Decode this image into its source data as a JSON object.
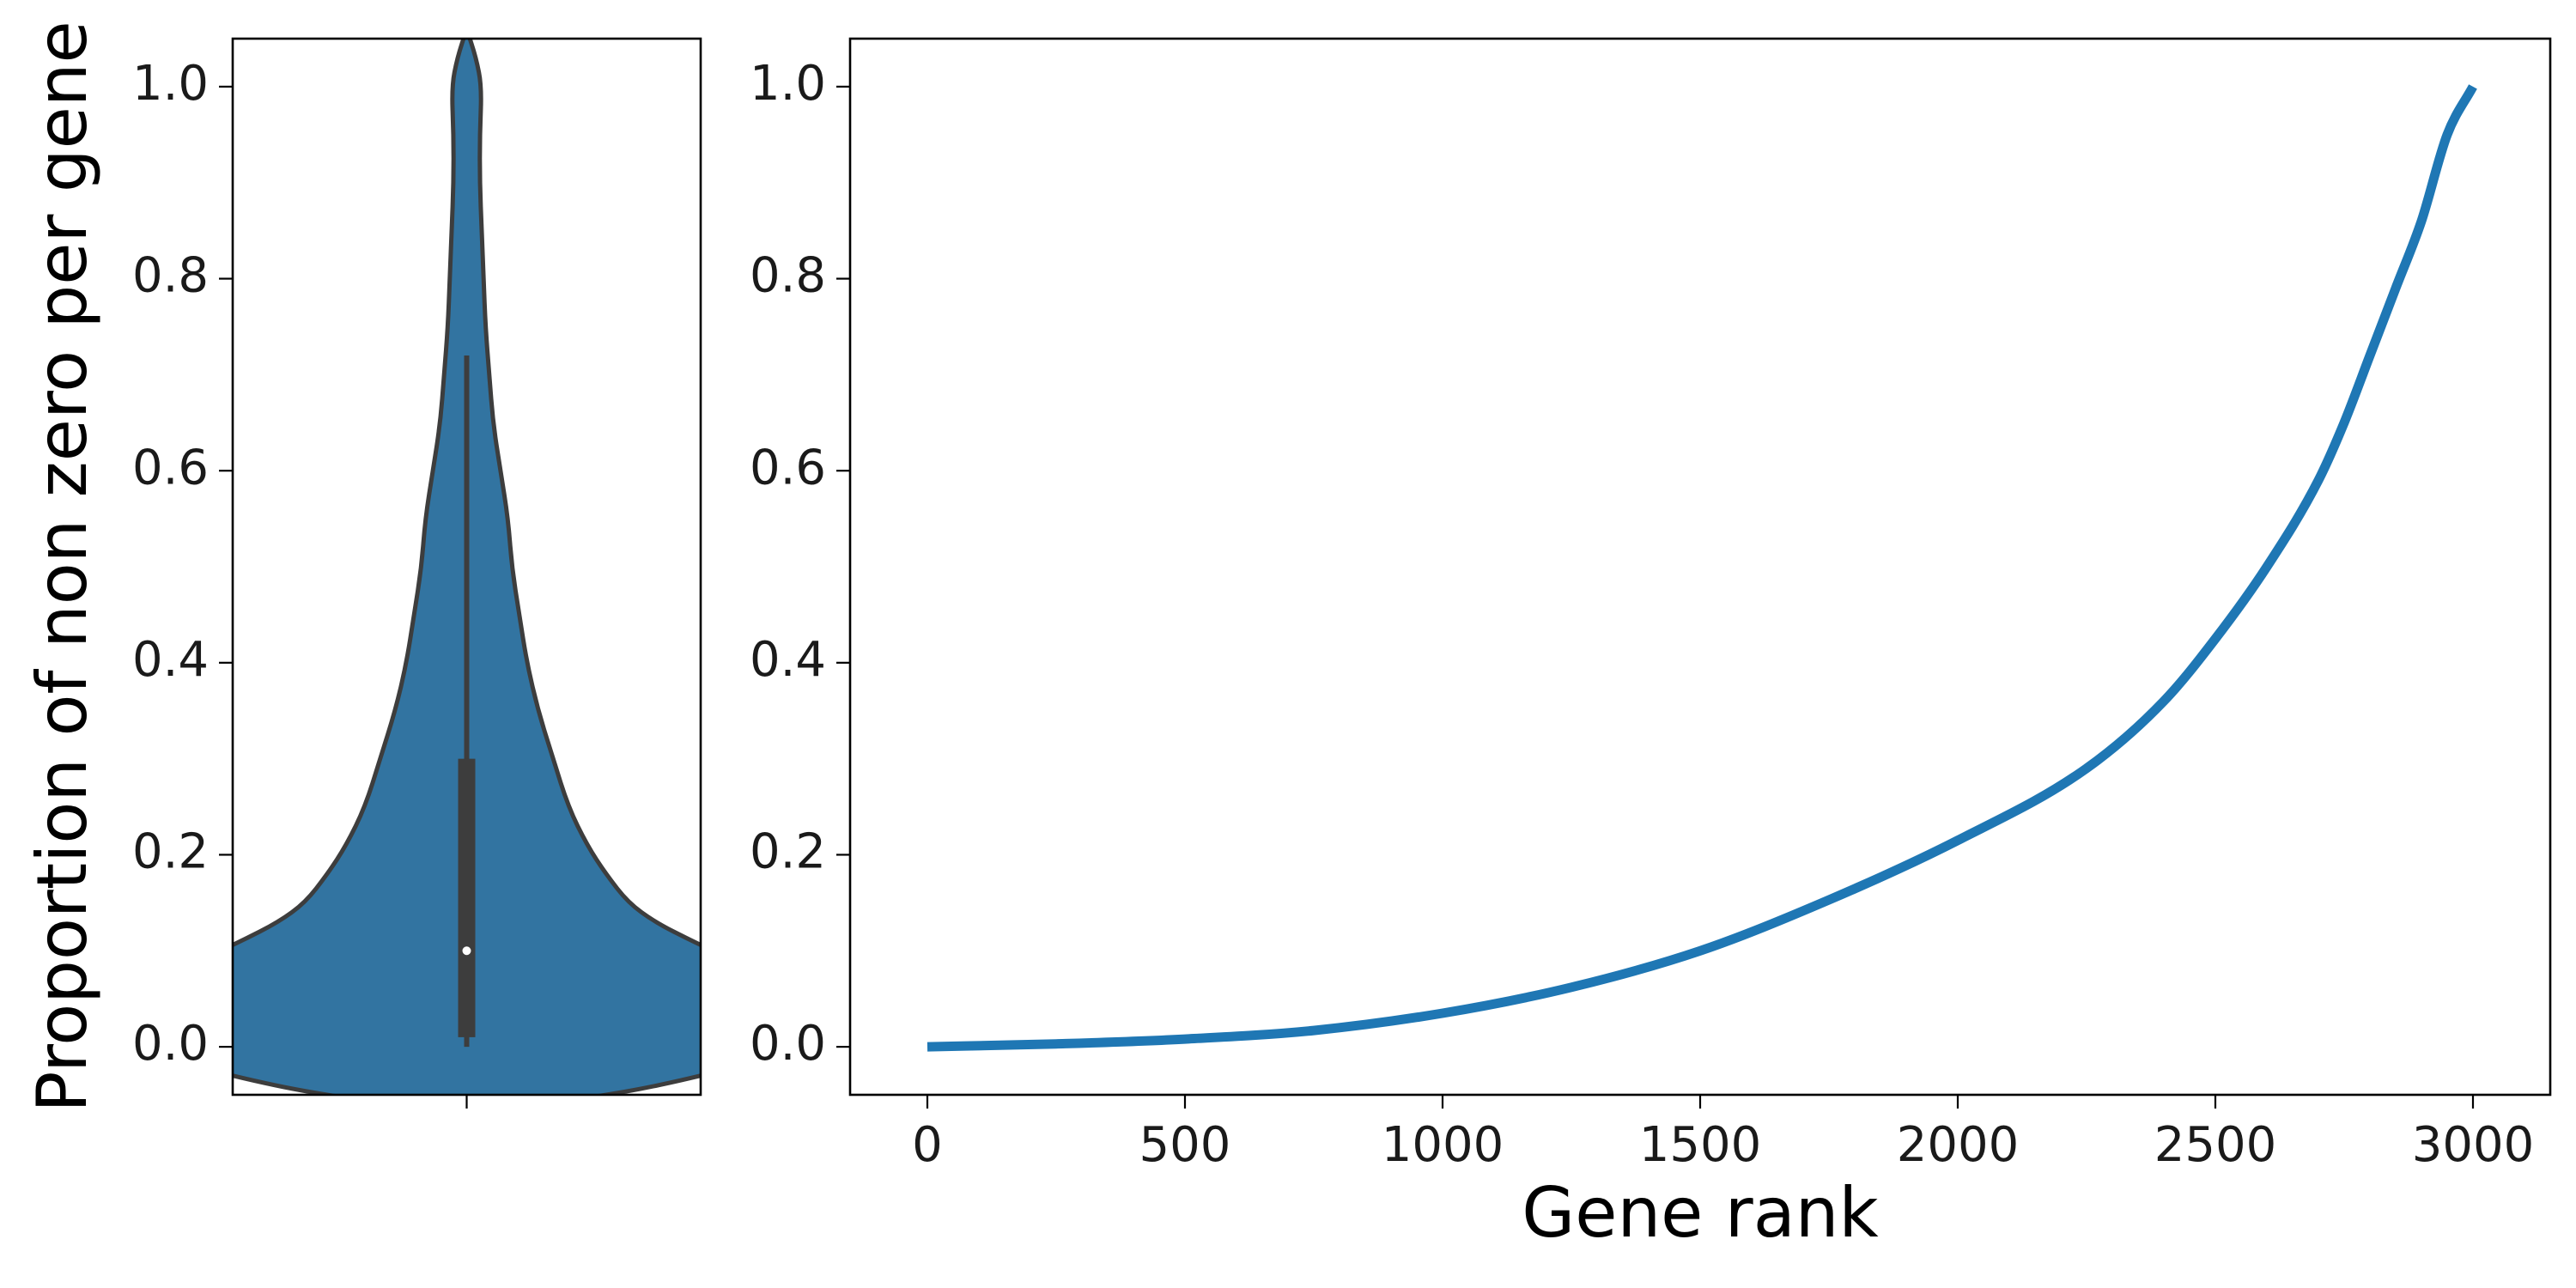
{
  "chart_data": [
    {
      "type": "violin",
      "ylabel": "Proportion of non zero per gene",
      "ylim": [
        -0.05,
        1.05
      ],
      "yticks": [
        0.0,
        0.2,
        0.4,
        0.6,
        0.8,
        1.0
      ],
      "ytick_labels": [
        "0.0",
        "0.2",
        "0.4",
        "0.6",
        "0.8",
        "1.0"
      ],
      "density_profile": [
        {
          "y": -0.07,
          "halfwidth": 0.0
        },
        {
          "y": -0.05,
          "halfwidth": 0.39
        },
        {
          "y": -0.03,
          "halfwidth": 0.63
        },
        {
          "y": -0.01,
          "halfwidth": 0.81
        },
        {
          "y": 0.0,
          "halfwidth": 0.89
        },
        {
          "y": 0.01,
          "halfwidth": 0.95
        },
        {
          "y": 0.02,
          "halfwidth": 0.98
        },
        {
          "y": 0.03,
          "halfwidth": 1.0
        },
        {
          "y": 0.04,
          "halfwidth": 0.98
        },
        {
          "y": 0.05,
          "halfwidth": 0.93
        },
        {
          "y": 0.07,
          "halfwidth": 0.82
        },
        {
          "y": 0.09,
          "halfwidth": 0.71
        },
        {
          "y": 0.11,
          "halfwidth": 0.6
        },
        {
          "y": 0.13,
          "halfwidth": 0.5
        },
        {
          "y": 0.15,
          "halfwidth": 0.43
        },
        {
          "y": 0.18,
          "halfwidth": 0.37
        },
        {
          "y": 0.21,
          "halfwidth": 0.32
        },
        {
          "y": 0.25,
          "halfwidth": 0.27
        },
        {
          "y": 0.3,
          "halfwidth": 0.23
        },
        {
          "y": 0.35,
          "halfwidth": 0.19
        },
        {
          "y": 0.4,
          "halfwidth": 0.16
        },
        {
          "y": 0.45,
          "halfwidth": 0.14
        },
        {
          "y": 0.5,
          "halfwidth": 0.12
        },
        {
          "y": 0.55,
          "halfwidth": 0.11
        },
        {
          "y": 0.6,
          "halfwidth": 0.09
        },
        {
          "y": 0.65,
          "halfwidth": 0.07
        },
        {
          "y": 0.7,
          "halfwidth": 0.06
        },
        {
          "y": 0.75,
          "halfwidth": 0.05
        },
        {
          "y": 0.8,
          "halfwidth": 0.045
        },
        {
          "y": 0.85,
          "halfwidth": 0.04
        },
        {
          "y": 0.9,
          "halfwidth": 0.035
        },
        {
          "y": 0.95,
          "halfwidth": 0.035
        },
        {
          "y": 1.0,
          "halfwidth": 0.04
        },
        {
          "y": 1.03,
          "halfwidth": 0.025
        },
        {
          "y": 1.06,
          "halfwidth": 0.0
        }
      ],
      "box": {
        "q1": 0.01,
        "median": 0.1,
        "q3": 0.3,
        "whisker_low": 0.0,
        "whisker_high": 0.72
      },
      "colors": {
        "fill": "#3274a1",
        "edge": "#3d3d3d",
        "median": "#ffffff"
      }
    },
    {
      "type": "line",
      "xlabel": "Gene rank",
      "xlim": [
        -150,
        3150
      ],
      "ylim": [
        -0.05,
        1.05
      ],
      "xticks": [
        0,
        500,
        1000,
        1500,
        2000,
        2500,
        3000
      ],
      "xtick_labels": [
        "0",
        "500",
        "1000",
        "1500",
        "2000",
        "2500",
        "3000"
      ],
      "yticks": [
        0.0,
        0.2,
        0.4,
        0.6,
        0.8,
        1.0
      ],
      "ytick_labels": [
        "0.0",
        "0.2",
        "0.4",
        "0.6",
        "0.8",
        "1.0"
      ],
      "series": [
        {
          "color": "#1f77b4",
          "x": [
            0,
            250,
            500,
            750,
            1000,
            1250,
            1500,
            1750,
            2000,
            2250,
            2400,
            2500,
            2600,
            2700,
            2750,
            2800,
            2850,
            2900,
            2950,
            3000
          ],
          "y": [
            0.0,
            0.003,
            0.008,
            0.017,
            0.035,
            0.062,
            0.1,
            0.153,
            0.215,
            0.29,
            0.36,
            0.425,
            0.5,
            0.59,
            0.65,
            0.72,
            0.79,
            0.86,
            0.95,
            1.0
          ]
        }
      ]
    }
  ]
}
